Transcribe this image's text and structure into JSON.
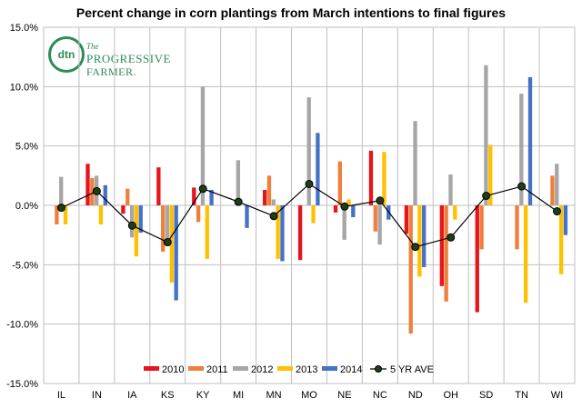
{
  "logo": {
    "mark": "dtn",
    "line1": "The",
    "line2": "PROGRESSIVE",
    "line3": "FARMER."
  },
  "chart_data": {
    "type": "bar",
    "title": "Percent change in corn plantings from March intentions to final figures",
    "xlabel": "",
    "ylabel": "",
    "ylim": [
      -15,
      15
    ],
    "yticks": [
      15,
      10,
      5,
      0,
      -5,
      -10,
      -15
    ],
    "ytick_labels": [
      "15.0%",
      "10.0%",
      "5.0%",
      "0.0%",
      "-5.0%",
      "-10.0%",
      "-15.0%"
    ],
    "grid": true,
    "legend_position": "bottom",
    "categories": [
      "IL",
      "IN",
      "IA",
      "KS",
      "KY",
      "MI",
      "MN",
      "MO",
      "NE",
      "NC",
      "ND",
      "OH",
      "SD",
      "TN",
      "WI"
    ],
    "series": [
      {
        "name": "2010",
        "color": "#e8141c",
        "values": [
          0,
          3.5,
          -0.7,
          3.2,
          1.5,
          0,
          1.3,
          -4.6,
          -0.6,
          4.6,
          -2.4,
          -6.8,
          -9.0,
          0,
          0
        ]
      },
      {
        "name": "2011",
        "color": "#ef7f3a",
        "values": [
          -1.6,
          2.3,
          1.4,
          -3.9,
          -1.4,
          0,
          2.5,
          0,
          3.7,
          -2.2,
          -10.8,
          -8.1,
          -3.7,
          -3.7,
          2.5
        ]
      },
      {
        "name": "2012",
        "color": "#a6a6a6",
        "values": [
          2.4,
          2.5,
          -2.7,
          -3.2,
          10.0,
          3.8,
          0.5,
          9.1,
          -2.9,
          -3.3,
          7.1,
          2.6,
          11.8,
          9.4,
          3.5
        ]
      },
      {
        "name": "2013",
        "color": "#ffc000",
        "values": [
          -1.6,
          -1.6,
          -4.3,
          -6.5,
          -4.5,
          0,
          -4.5,
          -1.5,
          0.5,
          4.5,
          -6.0,
          -1.2,
          5.1,
          -8.2,
          -5.8
        ]
      },
      {
        "name": "2014",
        "color": "#4472c4",
        "values": [
          0,
          1.7,
          -2.3,
          -8.0,
          1.3,
          -1.9,
          -4.7,
          6.1,
          -1.0,
          -1.2,
          -5.2,
          0,
          0,
          10.8,
          -2.5
        ]
      }
    ],
    "line_series": {
      "name": "5 YR AVE",
      "color": "#000000",
      "values": [
        -0.2,
        1.2,
        -1.7,
        -3.1,
        1.4,
        0.3,
        -0.9,
        1.8,
        -0.1,
        0.4,
        -3.5,
        -2.7,
        0.8,
        1.6,
        -0.5
      ]
    }
  }
}
